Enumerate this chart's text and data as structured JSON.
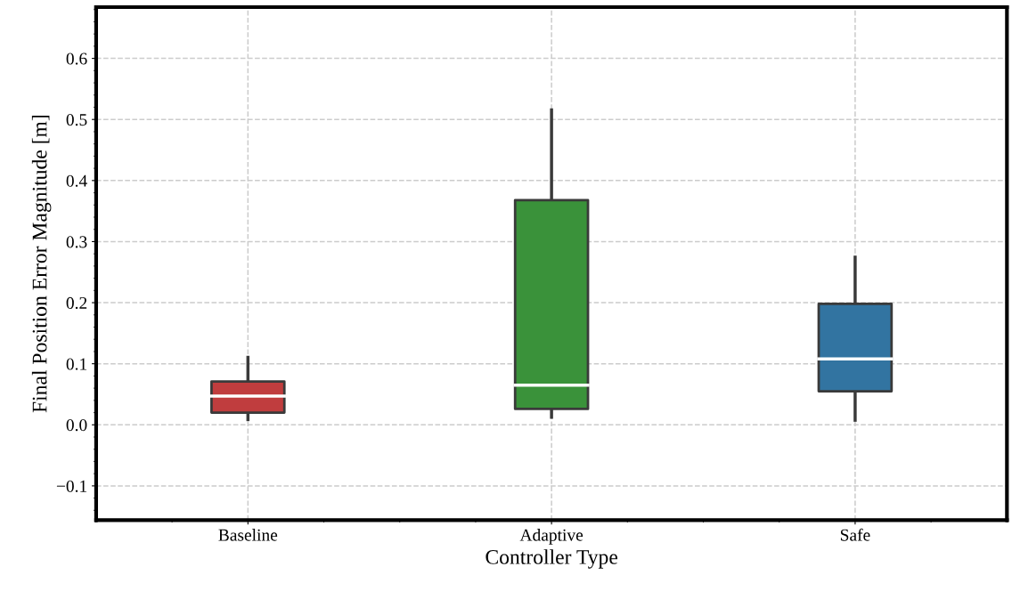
{
  "chart_data": {
    "type": "box",
    "xlabel": "Controller Type",
    "ylabel": "Final Position Error Magnitude [m]",
    "categories": [
      "Baseline",
      "Adaptive",
      "Safe"
    ],
    "colors": [
      "#c03d3e",
      "#3a923a",
      "#3274a1"
    ],
    "boxes": [
      {
        "low": 0.006,
        "q1": 0.02,
        "median": 0.047,
        "q3": 0.071,
        "high": 0.113
      },
      {
        "low": 0.01,
        "q1": 0.026,
        "median": 0.065,
        "q3": 0.368,
        "high": 0.518
      },
      {
        "low": 0.005,
        "q1": 0.055,
        "median": 0.108,
        "q3": 0.198,
        "high": 0.277
      }
    ],
    "ylim": [
      -0.156,
      0.684
    ],
    "yticks": [
      {
        "value": -0.1,
        "label": "−0.1"
      },
      {
        "value": 0.0,
        "label": "0.0"
      },
      {
        "value": 0.1,
        "label": "0.1"
      },
      {
        "value": 0.2,
        "label": "0.2"
      },
      {
        "value": 0.3,
        "label": "0.3"
      },
      {
        "value": 0.4,
        "label": "0.4"
      },
      {
        "value": 0.5,
        "label": "0.5"
      },
      {
        "value": 0.6,
        "label": "0.6"
      }
    ],
    "grid": true
  }
}
